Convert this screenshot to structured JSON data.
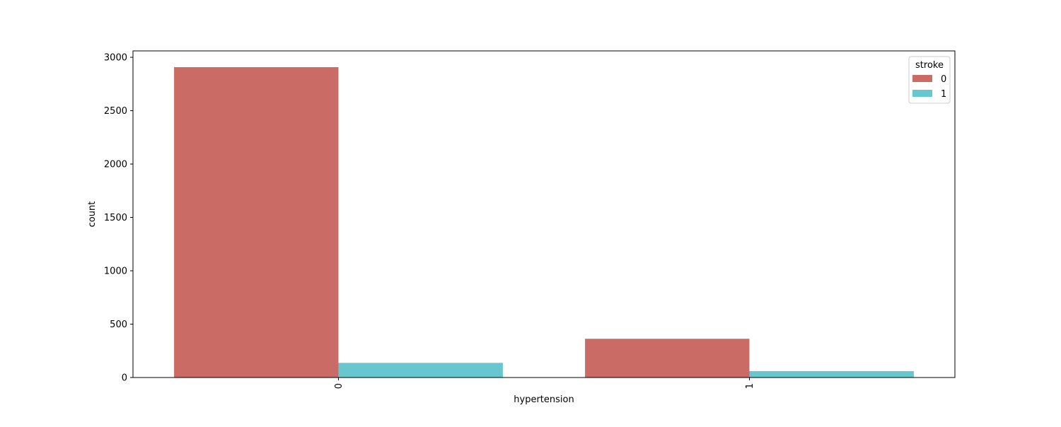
{
  "chart_data": {
    "type": "bar",
    "xlabel": "hypertension",
    "ylabel": "count",
    "categories": [
      "0",
      "1"
    ],
    "ylim": [
      0,
      3060
    ],
    "yticks": [
      0,
      500,
      1000,
      1500,
      2000,
      2500,
      3000
    ],
    "grid": false,
    "legend": {
      "title": "stroke",
      "position": "top-right"
    },
    "series": [
      {
        "name": "0",
        "color": "#ca6c65",
        "values": [
          2908,
          363
        ]
      },
      {
        "name": "1",
        "color": "#68c6ce",
        "values": [
          137,
          60
        ]
      }
    ]
  }
}
